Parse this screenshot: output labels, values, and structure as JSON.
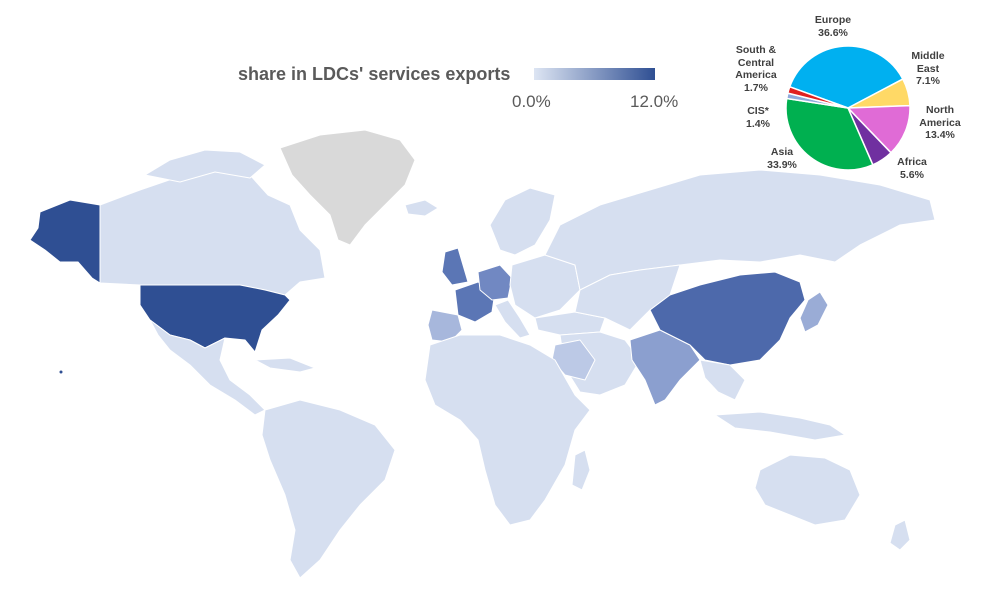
{
  "legend": {
    "title": "share in LDCs' services exports",
    "min_label": "0.0%",
    "max_label": "12.0%",
    "color_low": "#dde5f3",
    "color_high": "#2f4f93"
  },
  "map": {
    "land_color": "#d6dff0",
    "no_data_color": "#d9d9d9",
    "border_color": "#ffffff",
    "highlighted_regions": [
      {
        "name": "United States",
        "shade": 1.0
      },
      {
        "name": "Alaska",
        "shade": 1.0
      },
      {
        "name": "China",
        "shade": 0.75
      },
      {
        "name": "India",
        "shade": 0.45
      },
      {
        "name": "France",
        "shade": 0.6
      },
      {
        "name": "United Kingdom",
        "shade": 0.6
      },
      {
        "name": "Germany",
        "shade": 0.5
      },
      {
        "name": "Japan",
        "shade": 0.35
      },
      {
        "name": "Saudi Arabia",
        "shade": 0.2
      }
    ]
  },
  "chart_data": {
    "type": "pie",
    "slices": [
      {
        "name": "Europe",
        "value": 36.6,
        "label": "36.6%",
        "color": "#00b0f0"
      },
      {
        "name": "Middle East",
        "value": 7.1,
        "label": "7.1%",
        "color": "#ffd966"
      },
      {
        "name": "North America",
        "value": 13.4,
        "label": "13.4%",
        "color": "#e06bd6"
      },
      {
        "name": "Africa",
        "value": 5.6,
        "label": "5.6%",
        "color": "#7030a0"
      },
      {
        "name": "Asia",
        "value": 33.9,
        "label": "33.9%",
        "color": "#00b050"
      },
      {
        "name": "CIS*",
        "value": 1.4,
        "label": "1.4%",
        "color": "#8faadc"
      },
      {
        "name": "South & Central America",
        "value": 1.7,
        "label": "1.7%",
        "color": "#e02020"
      }
    ]
  },
  "pie_labels": [
    {
      "lines": [
        "Europe",
        "36.6%"
      ]
    },
    {
      "lines": [
        "Middle",
        "East",
        "7.1%"
      ]
    },
    {
      "lines": [
        "North",
        "America",
        "13.4%"
      ]
    },
    {
      "lines": [
        "Africa",
        "5.6%"
      ]
    },
    {
      "lines": [
        "Asia",
        "33.9%"
      ]
    },
    {
      "lines": [
        "CIS*",
        "1.4%"
      ]
    },
    {
      "lines": [
        "South &",
        "Central",
        "America",
        "1.7%"
      ]
    }
  ]
}
